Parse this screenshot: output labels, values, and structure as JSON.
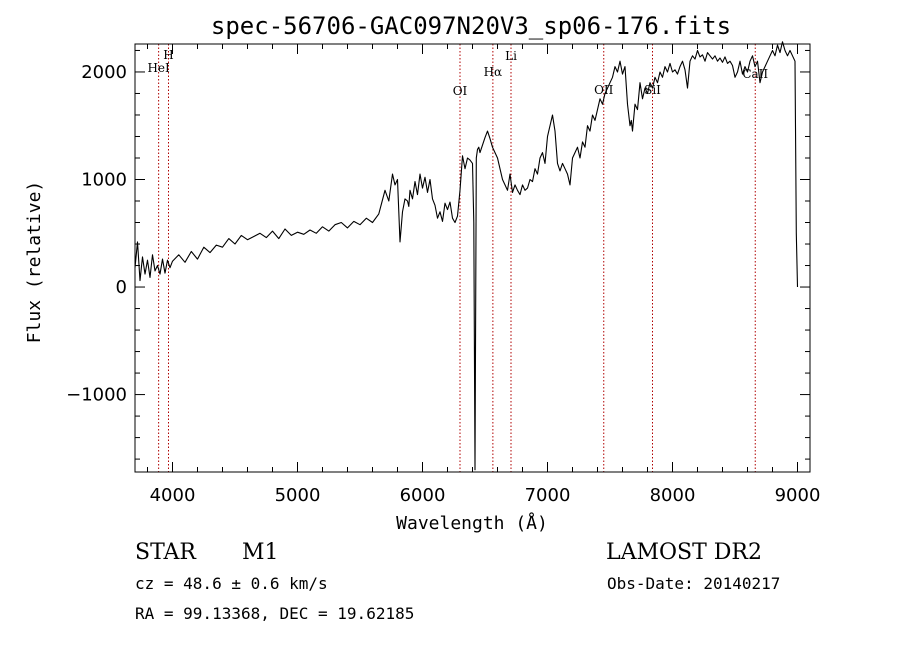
{
  "chart_data": {
    "type": "line",
    "title": "spec-56706-GAC097N20V3_sp06-176.fits",
    "xlabel": "Wavelength (Å)",
    "ylabel": "Flux (relative)",
    "xlim": [
      3700,
      9100
    ],
    "ylim": [
      -1720,
      2260
    ],
    "xticks": [
      4000,
      5000,
      6000,
      7000,
      8000,
      9000
    ],
    "yticks": [
      -1000,
      0,
      1000,
      2000
    ],
    "ytick_labels": [
      "−1000",
      "0",
      "1000",
      "2000"
    ],
    "grid": false,
    "series": [
      {
        "x": [
          3700,
          3720,
          3740,
          3760,
          3780,
          3800,
          3820,
          3840,
          3860,
          3880,
          3900,
          3920,
          3940,
          3960,
          3980,
          4000,
          4050,
          4100,
          4150,
          4200,
          4250,
          4300,
          4350,
          4400,
          4450,
          4500,
          4550,
          4600,
          4650,
          4700,
          4750,
          4800,
          4850,
          4900,
          4950,
          5000,
          5050,
          5100,
          5150,
          5200,
          5250,
          5300,
          5350,
          5400,
          5450,
          5500,
          5550,
          5600,
          5650,
          5700,
          5730,
          5760,
          5780,
          5800,
          5820,
          5840,
          5860,
          5880,
          5890,
          5900,
          5920,
          5940,
          5960,
          5980,
          6000,
          6020,
          6040,
          6060,
          6080,
          6100,
          6120,
          6140,
          6160,
          6180,
          6200,
          6220,
          6240,
          6260,
          6280,
          6300,
          6320,
          6340,
          6360,
          6380,
          6400,
          6410,
          6420,
          6430,
          6440,
          6450,
          6460,
          6480,
          6500,
          6520,
          6540,
          6560,
          6580,
          6600,
          6620,
          6640,
          6660,
          6680,
          6700,
          6720,
          6740,
          6760,
          6780,
          6800,
          6820,
          6840,
          6860,
          6880,
          6900,
          6920,
          6940,
          6960,
          6980,
          7000,
          7020,
          7040,
          7060,
          7080,
          7100,
          7120,
          7140,
          7160,
          7180,
          7200,
          7220,
          7240,
          7260,
          7280,
          7300,
          7320,
          7340,
          7360,
          7380,
          7400,
          7420,
          7440,
          7460,
          7480,
          7500,
          7520,
          7540,
          7560,
          7580,
          7600,
          7620,
          7640,
          7660,
          7670,
          7680,
          7700,
          7720,
          7740,
          7760,
          7780,
          7800,
          7820,
          7840,
          7860,
          7880,
          7900,
          7920,
          7940,
          7960,
          7980,
          8000,
          8020,
          8040,
          8060,
          8080,
          8100,
          8120,
          8140,
          8160,
          8180,
          8200,
          8220,
          8240,
          8260,
          8280,
          8300,
          8320,
          8340,
          8360,
          8380,
          8400,
          8420,
          8440,
          8460,
          8480,
          8500,
          8520,
          8540,
          8560,
          8580,
          8600,
          8620,
          8640,
          8660,
          8680,
          8700,
          8720,
          8740,
          8760,
          8780,
          8800,
          8820,
          8840,
          8860,
          8880,
          8900,
          8920,
          8940,
          8960,
          8980,
          8990,
          9000
        ],
        "y": [
          180,
          420,
          60,
          280,
          120,
          250,
          90,
          300,
          150,
          200,
          120,
          260,
          130,
          250,
          180,
          240,
          300,
          230,
          330,
          260,
          370,
          320,
          390,
          370,
          450,
          400,
          480,
          440,
          470,
          500,
          460,
          520,
          450,
          540,
          480,
          510,
          490,
          530,
          500,
          560,
          520,
          580,
          600,
          550,
          610,
          580,
          640,
          600,
          680,
          900,
          800,
          1050,
          950,
          1000,
          420,
          700,
          820,
          800,
          750,
          900,
          820,
          980,
          860,
          1050,
          920,
          1020,
          880,
          1000,
          820,
          760,
          640,
          700,
          610,
          780,
          720,
          790,
          640,
          600,
          660,
          900,
          1220,
          1100,
          1200,
          1180,
          1150,
          600,
          -1700,
          1200,
          1280,
          1300,
          1250,
          1320,
          1390,
          1450,
          1380,
          1300,
          1250,
          1200,
          1100,
          1000,
          950,
          900,
          1050,
          880,
          950,
          900,
          860,
          950,
          900,
          920,
          1000,
          980,
          1100,
          1050,
          1200,
          1250,
          1150,
          1400,
          1500,
          1600,
          1450,
          1150,
          1080,
          1150,
          1100,
          1050,
          950,
          1200,
          1250,
          1300,
          1200,
          1350,
          1300,
          1500,
          1450,
          1600,
          1550,
          1650,
          1750,
          1700,
          1800,
          1850,
          1900,
          1950,
          2050,
          2000,
          2100,
          1980,
          2050,
          1700,
          1500,
          1550,
          1450,
          1700,
          1650,
          1900,
          1750,
          1850,
          1800,
          1900,
          1850,
          1950,
          1900,
          2000,
          1950,
          2050,
          2000,
          2080,
          2000,
          2020,
          1980,
          2050,
          2100,
          2020,
          1850,
          2100,
          2150,
          2120,
          2200,
          2140,
          2160,
          2100,
          2180,
          2150,
          2120,
          2150,
          2100,
          2130,
          2090,
          2140,
          2080,
          2100,
          2060,
          1950,
          2000,
          2100,
          1980,
          2050,
          2000,
          2100,
          2150,
          2050,
          2100,
          1900,
          2000,
          2050,
          2100,
          2150,
          2200,
          2150,
          2250,
          2180,
          2280,
          2200,
          2150,
          2200,
          2150,
          2100,
          500,
          0
        ]
      }
    ],
    "lines": [
      {
        "name": "HeI",
        "x": 3889
      },
      {
        "name": "H",
        "x": 3968
      },
      {
        "name": "OI",
        "x": 6300
      },
      {
        "name": "Hα",
        "x": 6563
      },
      {
        "name": "Li",
        "x": 6708
      },
      {
        "name": "OII",
        "x": 7450
      },
      {
        "name": "SiI",
        "x": 7840
      },
      {
        "name": "CaII",
        "x": 8662
      }
    ],
    "line_color": "#b00000"
  },
  "info": {
    "class": "STAR",
    "subclass": "M1",
    "survey": "LAMOST DR2",
    "cz": "cz = 48.6 ± 0.6 km/s",
    "obs_date": "Obs-Date: 20140217",
    "coords": "RA =  99.13368, DEC =  19.62185"
  }
}
